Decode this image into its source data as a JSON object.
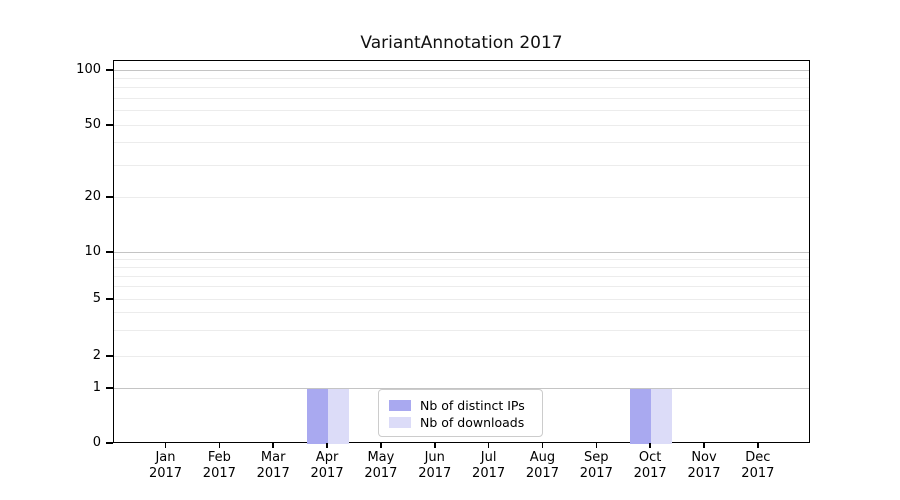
{
  "title": "VariantAnnotation 2017",
  "colors": {
    "distinct_ips": "#a9a9f0",
    "downloads": "#dcdcf8",
    "major_grid": "#c4c4c4",
    "minor_grid": "#ececec",
    "axis": "#000000",
    "legend_border": "#cccccc"
  },
  "legend": {
    "items": [
      {
        "label": "Nb of distinct IPs",
        "color": "#a9a9f0"
      },
      {
        "label": "Nb of downloads",
        "color": "#dcdcf8"
      }
    ]
  },
  "chart_data": {
    "type": "bar",
    "title": "VariantAnnotation 2017",
    "categories": [
      "Jan",
      "Feb",
      "Mar",
      "Apr",
      "May",
      "Jun",
      "Jul",
      "Aug",
      "Sep",
      "Oct",
      "Nov",
      "Dec"
    ],
    "category_year": "2017",
    "series": [
      {
        "name": "Nb of distinct IPs",
        "color": "#a9a9f0",
        "values": [
          0,
          0,
          0,
          1,
          0,
          0,
          0,
          0,
          0,
          1,
          0,
          0
        ]
      },
      {
        "name": "Nb of downloads",
        "color": "#dcdcf8",
        "values": [
          0,
          0,
          0,
          1,
          0,
          0,
          0,
          0,
          0,
          1,
          0,
          0
        ]
      }
    ],
    "xlabel": "",
    "ylabel": "",
    "yscale": "pseudo-log",
    "yticks": [
      0,
      1,
      2,
      5,
      10,
      20,
      50,
      100
    ],
    "minor_grid_values": [
      2,
      3,
      4,
      5,
      6,
      7,
      8,
      9,
      20,
      30,
      40,
      50,
      60,
      70,
      80,
      90
    ],
    "major_grid_values": [
      1,
      10,
      100
    ],
    "ylim": [
      0,
      110
    ],
    "grid": "horizontal",
    "legend_position": "lower center"
  }
}
